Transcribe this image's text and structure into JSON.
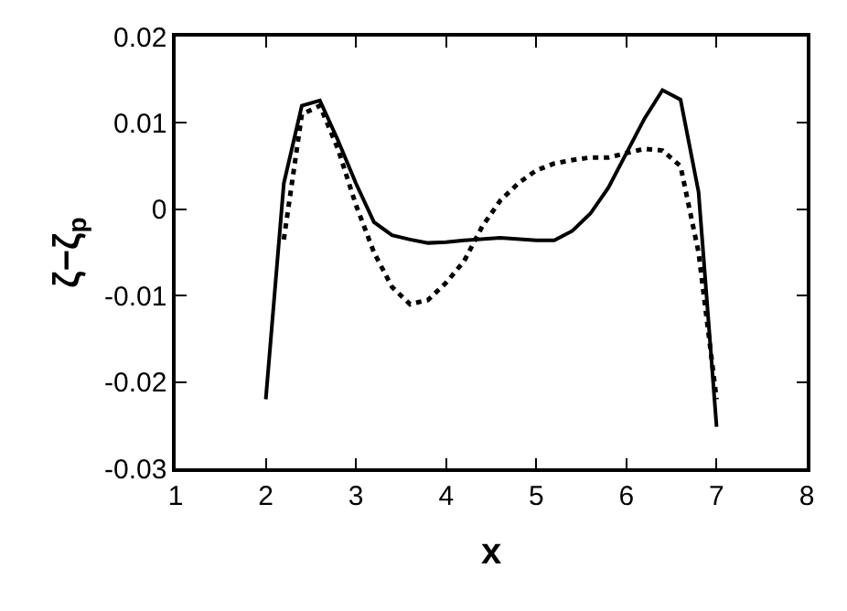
{
  "chart_data": {
    "type": "line",
    "xlabel": "x",
    "ylabel": "ζ−ζ$_{p}$",
    "xlim": [
      1,
      8
    ],
    "xticks": [
      1,
      2,
      3,
      4,
      5,
      6,
      7,
      8
    ],
    "ylim": [
      -0.03,
      0.02
    ],
    "yticks": [
      -0.03,
      -0.02,
      -0.01,
      0,
      0.01,
      0.02
    ],
    "legend": false,
    "marker": "none",
    "series": [
      {
        "color": "#000000",
        "line_style": "solid",
        "x": [
          2,
          2.2,
          2.4,
          2.6,
          2.8,
          3.0,
          3.2,
          3.4,
          3.6,
          3.8,
          4.0,
          4.2,
          4.6,
          5.0,
          5.2,
          5.4,
          5.6,
          5.8,
          6.0,
          6.2,
          6.4,
          6.6,
          6.8,
          7.0
        ],
        "values": [
          -0.022,
          0.003,
          0.012,
          0.0126,
          0.008,
          0.003,
          -0.0015,
          -0.003,
          -0.0035,
          -0.0039,
          -0.0038,
          -0.0036,
          -0.0033,
          -0.0036,
          -0.0036,
          -0.0025,
          -0.0005,
          0.0025,
          0.0065,
          0.0105,
          0.0138,
          0.0127,
          0.002,
          -0.0252
        ]
      },
      {
        "color": "#000000",
        "line_style": "dotted",
        "x": [
          2.2,
          2.4,
          2.6,
          2.8,
          3.0,
          3.2,
          3.4,
          3.6,
          3.8,
          4.0,
          4.2,
          4.4,
          4.6,
          4.8,
          5.0,
          5.2,
          5.4,
          5.6,
          5.8,
          6.0,
          6.2,
          6.4,
          6.6,
          6.8,
          7.0
        ],
        "values": [
          -0.0035,
          0.011,
          0.012,
          0.007,
          0.0005,
          -0.005,
          -0.009,
          -0.011,
          -0.0105,
          -0.0085,
          -0.006,
          -0.002,
          0.001,
          0.003,
          0.0045,
          0.0053,
          0.0057,
          0.006,
          0.006,
          0.0065,
          0.007,
          0.0068,
          0.005,
          -0.005,
          -0.022
        ]
      }
    ]
  }
}
